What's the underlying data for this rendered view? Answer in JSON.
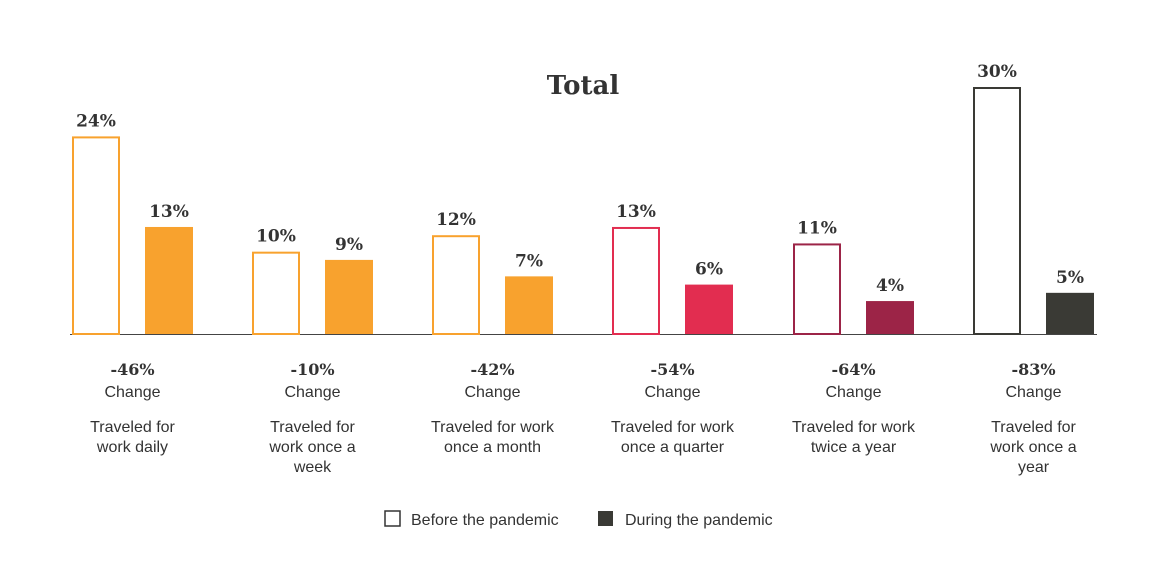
{
  "chart_data": {
    "type": "bar",
    "title": "Total",
    "categories": [
      [
        "Traveled for",
        "work daily"
      ],
      [
        "Traveled for",
        "work once a",
        "week"
      ],
      [
        "Traveled for work",
        "once a month"
      ],
      [
        "Traveled for work",
        "once a quarter"
      ],
      [
        "Traveled for work",
        "twice a year"
      ],
      [
        "Traveled for",
        "work once a",
        "year"
      ]
    ],
    "series": [
      {
        "name": "Before the pandemic",
        "values": [
          24,
          10,
          12,
          13,
          11,
          30
        ]
      },
      {
        "name": "During the pandemic",
        "values": [
          13,
          9,
          7,
          6,
          4,
          5
        ]
      }
    ],
    "value_labels": {
      "before": [
        "24%",
        "10%",
        "12%",
        "13%",
        "11%",
        "30%"
      ],
      "during": [
        "13%",
        "9%",
        "7%",
        "6%",
        "4%",
        "5%"
      ]
    },
    "changes": [
      "-46%",
      "-10%",
      "-42%",
      "-54%",
      "-64%",
      "-83%"
    ],
    "change_label": "Change",
    "colors": [
      "#f8a22e",
      "#f8a22e",
      "#f8a22e",
      "#e22d50",
      "#9c2447",
      "#3a3a35"
    ],
    "legend": {
      "before": "Before the pandemic",
      "during": "During the pandemic",
      "before_color": "#ffffff",
      "during_color": "#3a3a35",
      "placement": "bottom-center"
    },
    "ylim": [
      0,
      30
    ],
    "xlabel": "",
    "ylabel": "",
    "grid": false
  }
}
